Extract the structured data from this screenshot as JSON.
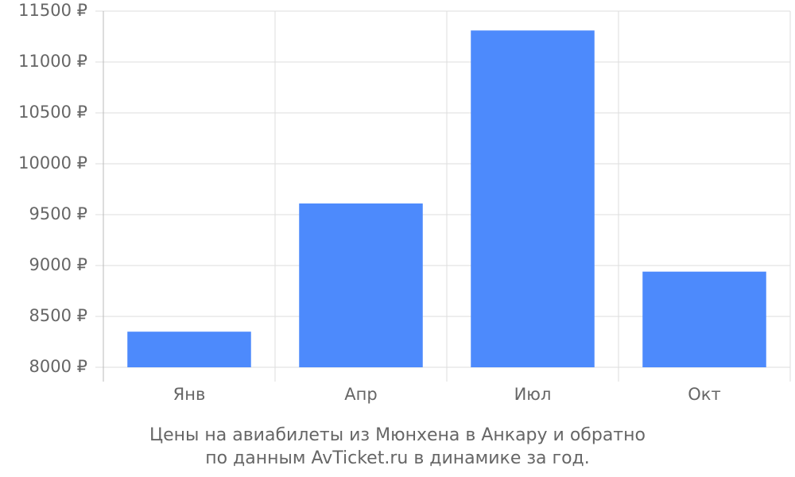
{
  "chart_data": {
    "type": "bar",
    "categories": [
      "Янв",
      "Апр",
      "Июл",
      "Окт"
    ],
    "values": [
      8350,
      9610,
      11310,
      8940
    ],
    "color": "#4d8afc",
    "ylim": [
      8000,
      11500
    ],
    "yticks": [
      {
        "value": 8000,
        "label": "8000 ₽"
      },
      {
        "value": 8500,
        "label": "8500 ₽"
      },
      {
        "value": 9000,
        "label": "9000 ₽"
      },
      {
        "value": 9500,
        "label": "9500 ₽"
      },
      {
        "value": 10000,
        "label": "10000 ₽"
      },
      {
        "value": 10500,
        "label": "10500 ₽"
      },
      {
        "value": 11000,
        "label": "11000 ₽"
      },
      {
        "value": 11500,
        "label": "11500 ₽"
      }
    ],
    "grid": true,
    "caption": [
      "Цены на авиабилеты из Мюнхена в Анкару и обратно",
      "по данным AvTicket.ru в динамике за год."
    ]
  }
}
